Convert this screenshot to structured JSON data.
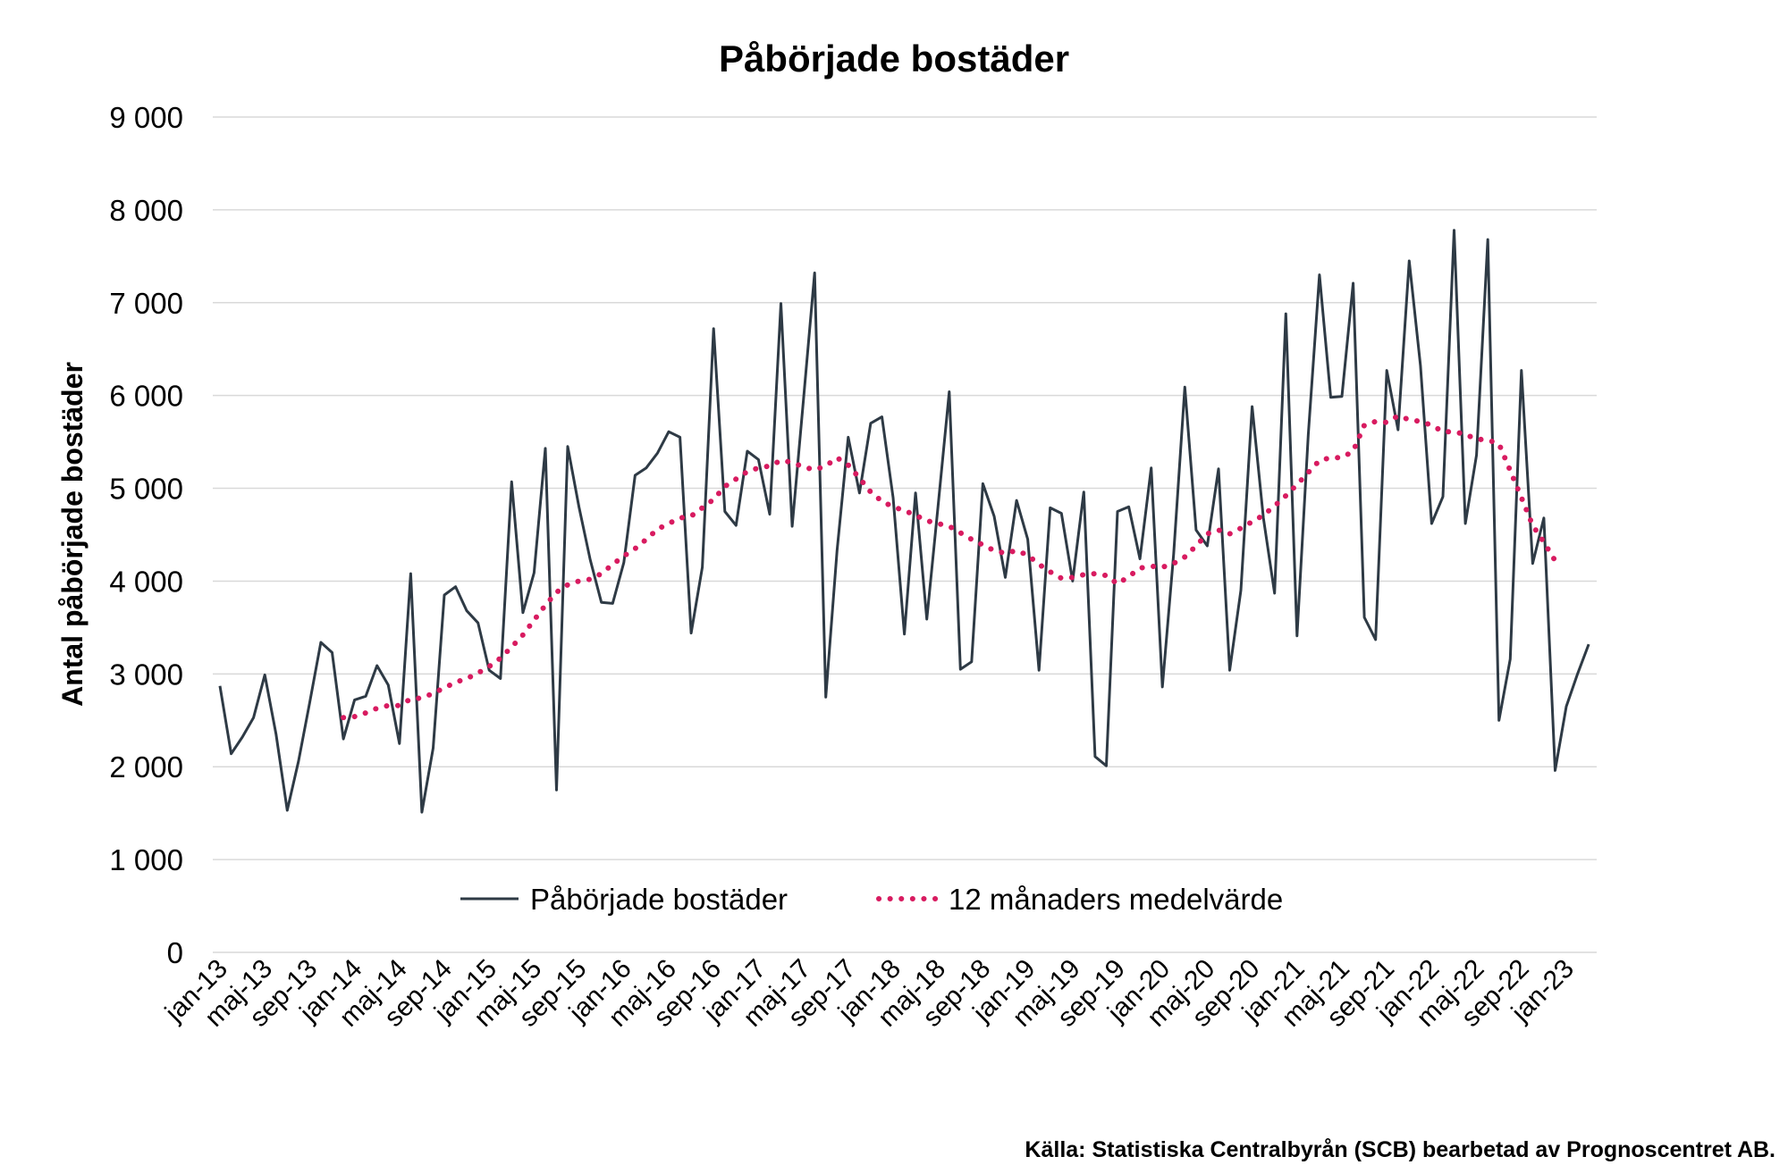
{
  "chart_data": {
    "type": "line",
    "title": "Påbörjade bostäder",
    "ylabel": "Antal påbörjade bostäder",
    "xlabel": "",
    "ylim": [
      0,
      9000
    ],
    "yticks": [
      0,
      1000,
      2000,
      3000,
      4000,
      5000,
      6000,
      7000,
      8000,
      9000
    ],
    "ytick_labels": [
      "0",
      "1 000",
      "2 000",
      "3 000",
      "4 000",
      "5 000",
      "6 000",
      "7 000",
      "8 000",
      "9 000"
    ],
    "grid": true,
    "legend_position": "bottom-center",
    "x_tick_labels": [
      "jan-13",
      "maj-13",
      "sep-13",
      "jan-14",
      "maj-14",
      "sep-14",
      "jan-15",
      "maj-15",
      "sep-15",
      "jan-16",
      "maj-16",
      "sep-16",
      "jan-17",
      "maj-17",
      "sep-17",
      "jan-18",
      "maj-18",
      "sep-18",
      "jan-19",
      "maj-19",
      "sep-19",
      "jan-20",
      "maj-20",
      "sep-20",
      "jan-21",
      "maj-21",
      "sep-21",
      "jan-22",
      "maj-22",
      "sep-22",
      "jan-23"
    ],
    "x_start": "2013-01",
    "series": [
      {
        "name": "Påbörjade bostäder",
        "color": "#2e3a45",
        "style": "solid",
        "values": [
          2870,
          2140,
          2320,
          2530,
          2990,
          2350,
          1530,
          2060,
          2690,
          3340,
          3230,
          2300,
          2720,
          2760,
          3090,
          2880,
          2250,
          4080,
          1510,
          2200,
          3850,
          3940,
          3680,
          3550,
          3040,
          2950,
          5070,
          3660,
          4090,
          5430,
          1750,
          5450,
          4800,
          4230,
          3770,
          3760,
          4200,
          5140,
          5220,
          5380,
          5610,
          5550,
          3440,
          4150,
          6720,
          4750,
          4600,
          5400,
          5310,
          4720,
          6990,
          4590,
          5940,
          7320,
          2750,
          4330,
          5550,
          4950,
          5700,
          5770,
          4900,
          3430,
          4950,
          3590,
          4800,
          6040,
          3050,
          3130,
          5050,
          4700,
          4040,
          4870,
          4450,
          3040,
          4790,
          4730,
          4000,
          4960,
          2110,
          2010,
          4750,
          4800,
          4240,
          5220,
          2860,
          4290,
          6090,
          4550,
          4380,
          5210,
          3040,
          3900,
          5880,
          4680,
          3870,
          6880,
          3410,
          5580,
          7300,
          5980,
          5990,
          7210,
          3610,
          3370,
          6270,
          5630,
          7450,
          6320,
          4620,
          4910,
          7780,
          4620,
          5360,
          7680,
          2500,
          3160,
          6270,
          4190,
          4680,
          1960,
          2650,
          3000,
          3320
        ]
      },
      {
        "name": "12 månaders medelvärde",
        "color": "#d81b60",
        "style": "dotted",
        "start_index": 11,
        "values": [
          2530,
          2540,
          2580,
          2630,
          2660,
          2660,
          2730,
          2740,
          2790,
          2850,
          2910,
          2950,
          3010,
          3080,
          3170,
          3290,
          3420,
          3580,
          3740,
          3880,
          3960,
          4000,
          4020,
          4080,
          4180,
          4270,
          4350,
          4450,
          4560,
          4620,
          4680,
          4700,
          4790,
          4880,
          5020,
          5100,
          5180,
          5220,
          5240,
          5300,
          5280,
          5230,
          5200,
          5240,
          5330,
          5250,
          5110,
          4960,
          4860,
          4800,
          4760,
          4710,
          4650,
          4620,
          4590,
          4520,
          4450,
          4390,
          4330,
          4300,
          4330,
          4280,
          4180,
          4100,
          4030,
          4040,
          4070,
          4080,
          4060,
          3970,
          4050,
          4140,
          4160,
          4150,
          4190,
          4260,
          4380,
          4510,
          4550,
          4510,
          4570,
          4640,
          4710,
          4810,
          4920,
          5040,
          5170,
          5300,
          5330,
          5330,
          5400,
          5680,
          5720,
          5710,
          5780,
          5740,
          5720,
          5680,
          5610,
          5610,
          5580,
          5530,
          5520,
          5480,
          5190,
          4900,
          4600,
          4420,
          4220
        ]
      }
    ]
  },
  "source": "Källa: Statistiska Centralbyrån (SCB) bearbetad av Prognoscentret AB."
}
